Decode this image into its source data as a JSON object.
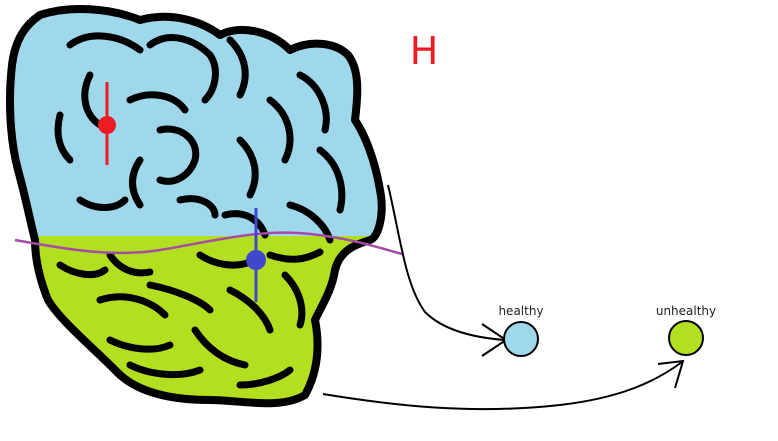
{
  "diagram": {
    "heading": "H",
    "legend": [
      {
        "label": "healthy",
        "color": "#9fd8ea"
      },
      {
        "label": "unhealthy",
        "color": "#b2e020"
      }
    ],
    "colors": {
      "outline": "#000000",
      "boundary_line": "#a64ca6",
      "marker_red": "#ed1c24",
      "marker_blue": "#3f48cc",
      "heading": "#ed1c24"
    }
  }
}
